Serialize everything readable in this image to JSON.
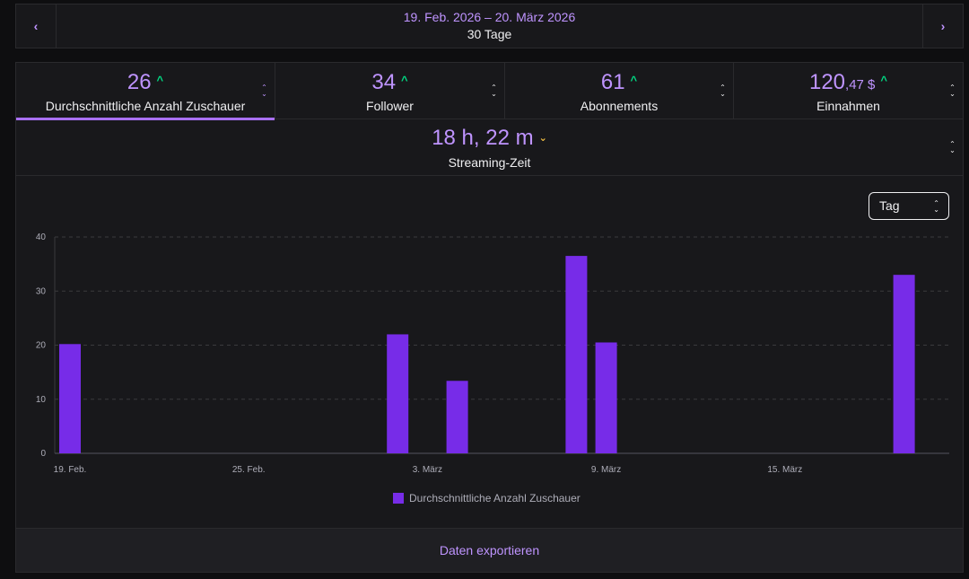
{
  "date_nav": {
    "prev_icon": "chevron-left-icon",
    "next_icon": "chevron-right-icon",
    "range": "19. Feb. 2026 – 20. März 2026",
    "days": "30 Tage"
  },
  "kpis": [
    {
      "value": "26",
      "label": "Durchschnittliche Anzahl Zuschauer",
      "trend": "up",
      "active": true
    },
    {
      "value": "34",
      "label": "Follower",
      "trend": "up",
      "active": false
    },
    {
      "value": "61",
      "label": "Abonnements",
      "trend": "up",
      "active": false
    },
    {
      "value_main": "120",
      "value_small": ",47 $",
      "label": "Einnahmen",
      "trend": "up",
      "active": false
    }
  ],
  "streaming": {
    "value": "18 h, 22 m",
    "label": "Streaming-Zeit",
    "trend": "down"
  },
  "interval_select": {
    "value": "Tag"
  },
  "export": {
    "label": "Daten exportieren"
  },
  "colors": {
    "accent": "#bf94ff",
    "bar": "#772ce8",
    "trend_up": "#00db84",
    "trend_down": "#f5c144"
  },
  "chart_data": {
    "type": "bar",
    "x": [
      "19. Feb.",
      "20. Feb.",
      "21. Feb.",
      "22. Feb.",
      "23. Feb.",
      "24. Feb.",
      "25. Feb.",
      "26. Feb.",
      "27. Feb.",
      "28. Feb.",
      "1. März",
      "2. März",
      "3. März",
      "4. März",
      "5. März",
      "6. März",
      "7. März",
      "8. März",
      "9. März",
      "10. März",
      "11. März",
      "12. März",
      "13. März",
      "14. März",
      "15. März",
      "16. März",
      "17. März",
      "18. März",
      "19. März",
      "20. März"
    ],
    "series": [
      {
        "name": "Durchschnittliche Anzahl Zuschauer",
        "values": [
          20.2,
          0,
          0,
          0,
          0,
          0,
          0,
          0,
          0,
          0,
          0,
          22,
          0,
          13.4,
          0,
          0,
          0,
          36.5,
          20.5,
          0,
          0,
          0,
          0,
          0,
          0,
          0,
          0,
          0,
          33,
          0
        ]
      }
    ],
    "xtick_labels": [
      "19. Feb.",
      "25. Feb.",
      "3. März",
      "9. März",
      "15. März"
    ],
    "yticks": [
      0,
      10,
      20,
      30,
      40
    ],
    "ylim": [
      0,
      40
    ],
    "grid": true,
    "legend_position": "bottom"
  }
}
